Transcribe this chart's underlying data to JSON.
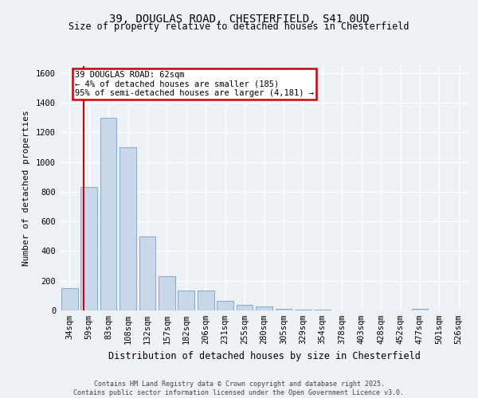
{
  "title1": "39, DOUGLAS ROAD, CHESTERFIELD, S41 0UD",
  "title2": "Size of property relative to detached houses in Chesterfield",
  "xlabel": "Distribution of detached houses by size in Chesterfield",
  "ylabel": "Number of detached properties",
  "categories": [
    "34sqm",
    "59sqm",
    "83sqm",
    "108sqm",
    "132sqm",
    "157sqm",
    "182sqm",
    "206sqm",
    "231sqm",
    "255sqm",
    "280sqm",
    "305sqm",
    "329sqm",
    "354sqm",
    "378sqm",
    "403sqm",
    "428sqm",
    "452sqm",
    "477sqm",
    "501sqm",
    "526sqm"
  ],
  "values": [
    150,
    830,
    1300,
    1100,
    500,
    230,
    135,
    135,
    65,
    40,
    25,
    12,
    5,
    3,
    1,
    0,
    0,
    0,
    10,
    0,
    0
  ],
  "bar_color": "#c8d8ea",
  "bar_edge_color": "#8ab0cc",
  "annotation_box_edge": "#cc0000",
  "red_line_color": "#cc0000",
  "annotation_line1": "39 DOUGLAS ROAD: 62sqm",
  "annotation_line2": "← 4% of detached houses are smaller (185)",
  "annotation_line3": "95% of semi-detached houses are larger (4,181) →",
  "ylim": [
    0,
    1650
  ],
  "yticks": [
    0,
    200,
    400,
    600,
    800,
    1000,
    1200,
    1400,
    1600
  ],
  "footer": "Contains HM Land Registry data © Crown copyright and database right 2025.\nContains public sector information licensed under the Open Government Licence v3.0.",
  "background_color": "#eef2f7",
  "grid_color": "#ffffff",
  "red_line_x": 0.5
}
